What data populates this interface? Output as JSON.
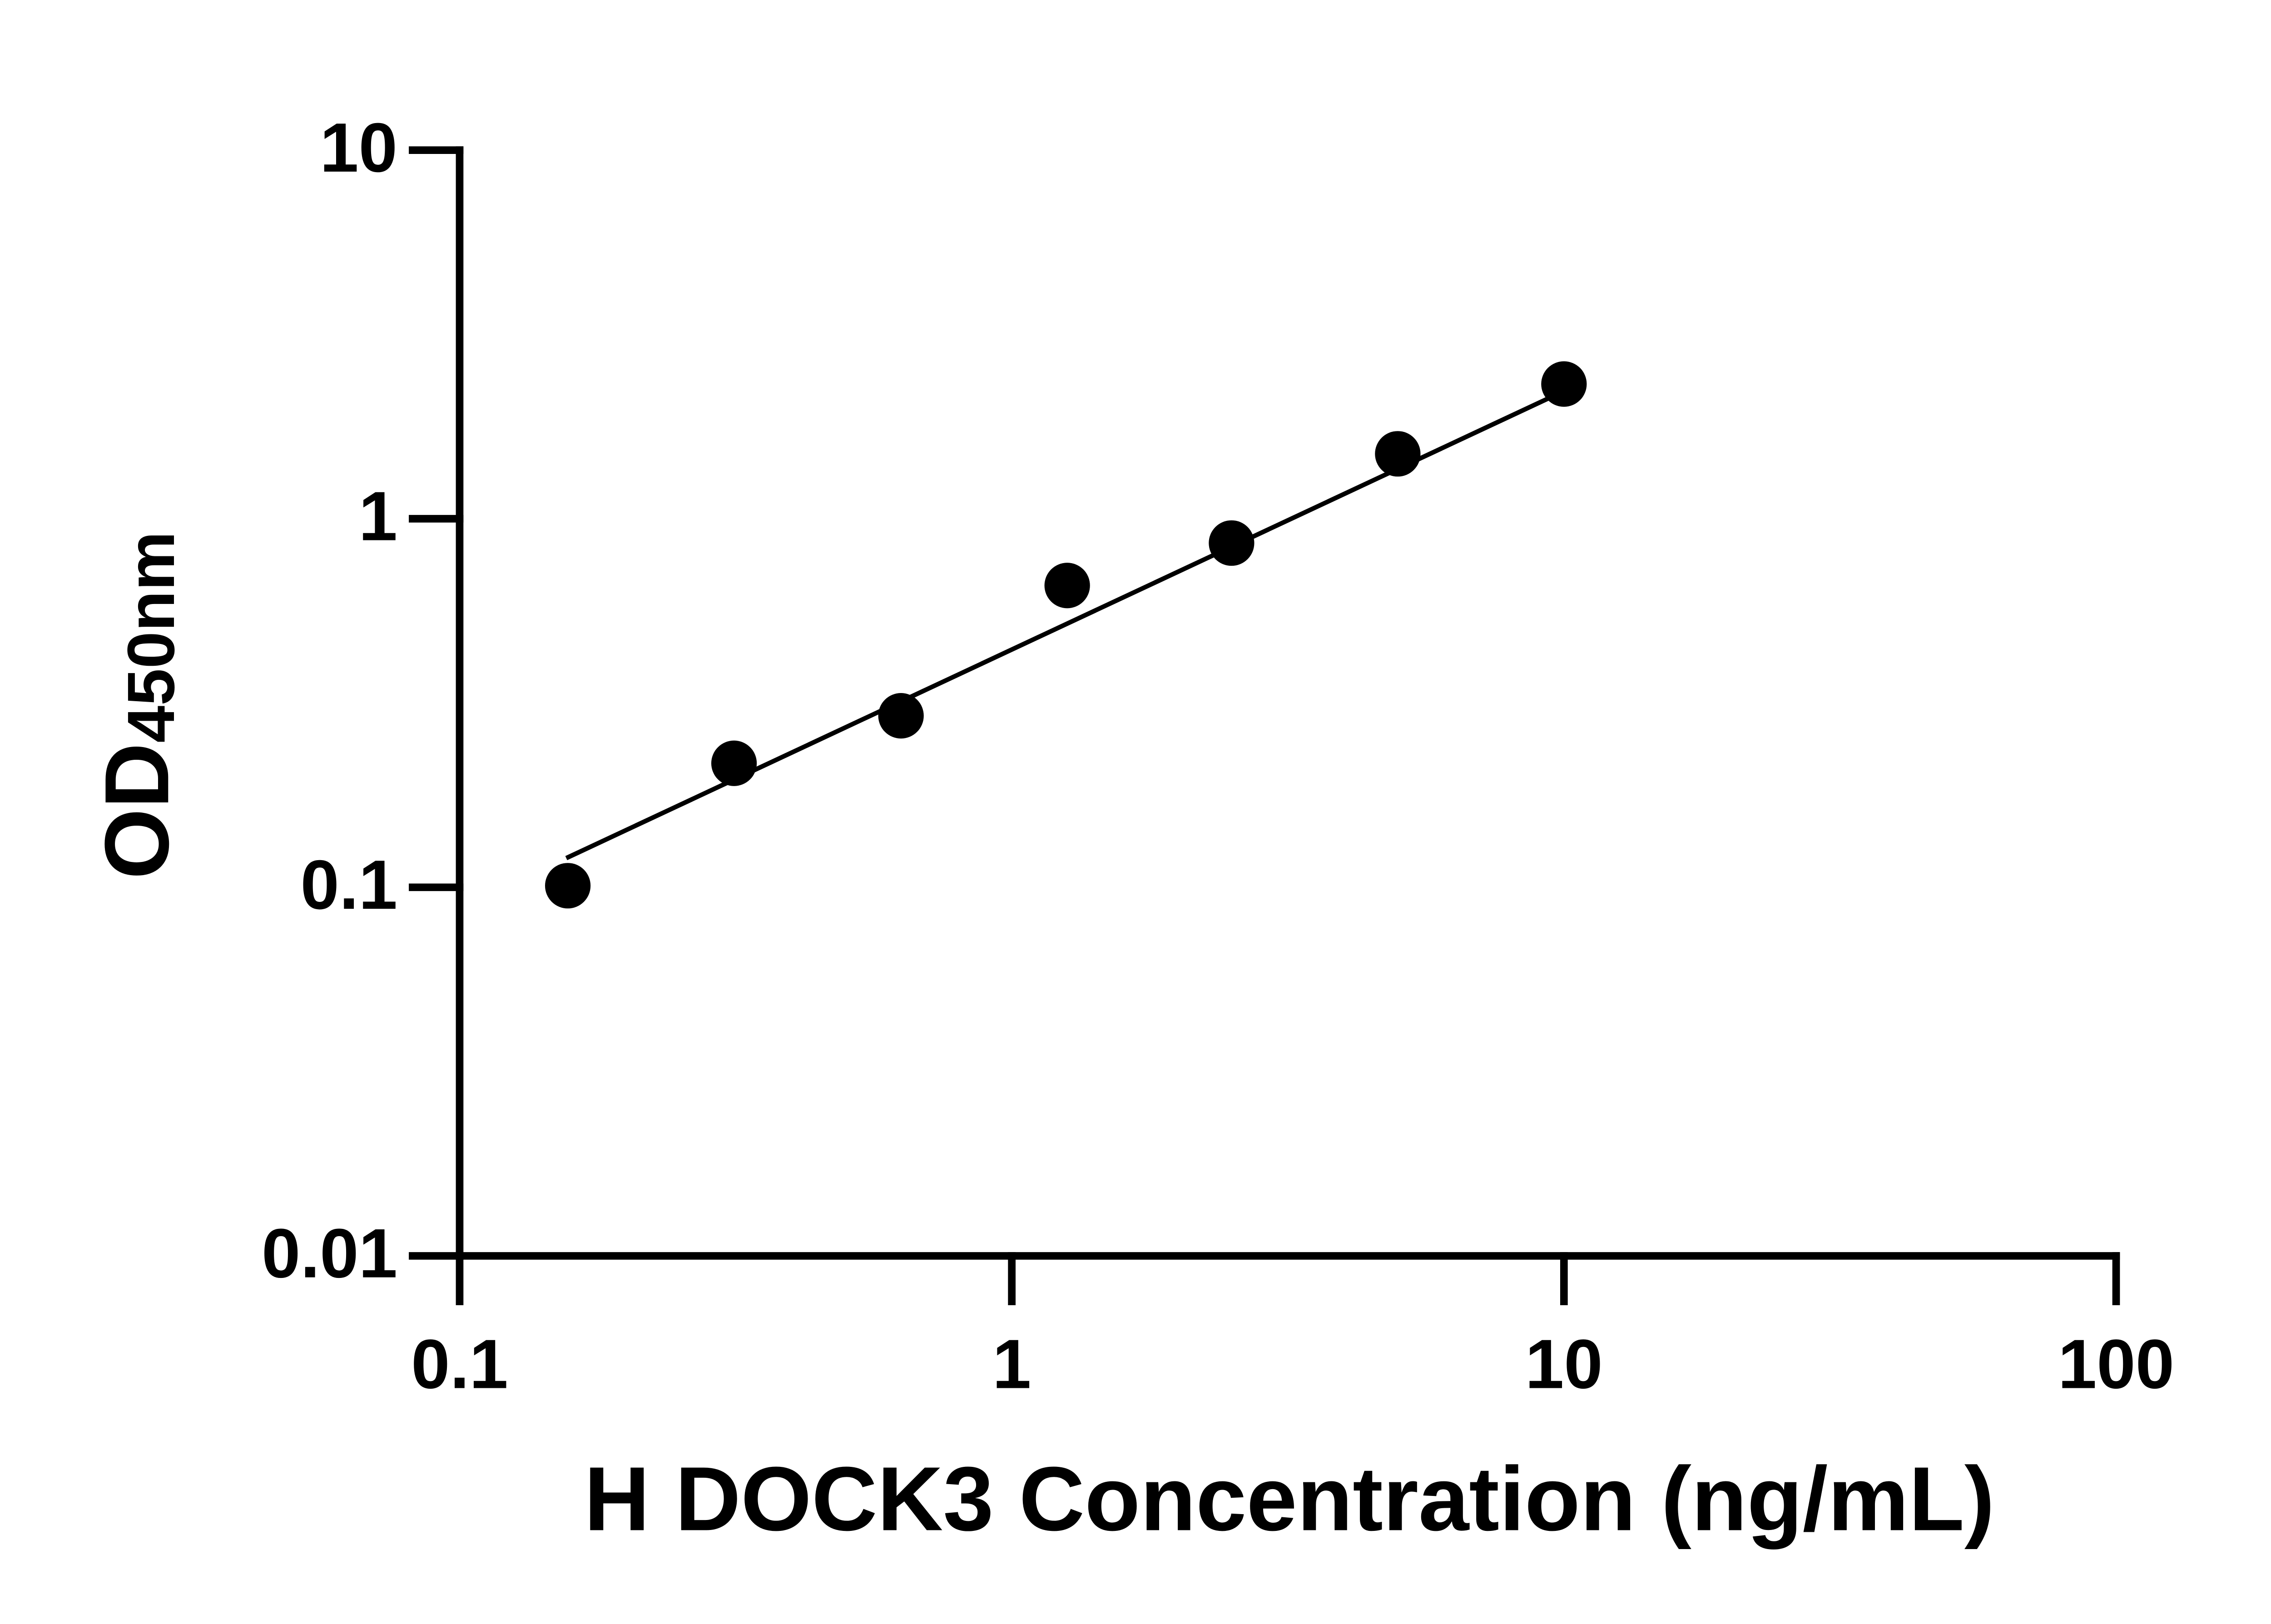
{
  "chart_data": {
    "type": "scatter",
    "xlabel": "H DOCK3 Concentration (ng/mL)",
    "ylabel": {
      "main": "OD",
      "sub": "450nm"
    },
    "xscale": "log",
    "yscale": "log",
    "xlim": [
      0.1,
      100
    ],
    "ylim": [
      0.01,
      10
    ],
    "xticks": [
      0.1,
      1,
      10,
      100
    ],
    "yticks": [
      0.01,
      0.1,
      1,
      10
    ],
    "color": "#000000",
    "x": [
      0.157,
      0.314,
      0.63,
      1.26,
      2.5,
      5,
      10
    ],
    "values": [
      0.101,
      0.217,
      0.292,
      0.659,
      0.859,
      1.5,
      2.32
    ],
    "fit": {
      "x": [
        0.156,
        10
      ],
      "values": [
        0.12,
        2.22
      ]
    }
  }
}
